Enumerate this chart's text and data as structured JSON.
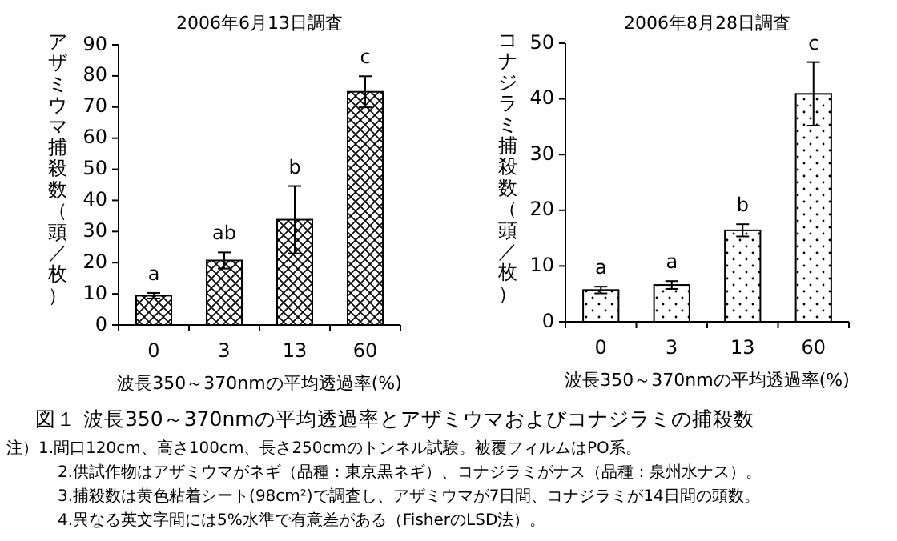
{
  "chart_data": [
    {
      "type": "bar",
      "title": "2006年6月13日調査",
      "xlabel": "波長350～370nmの平均透過率(%)",
      "ylabel": "アザミウマ捕殺数（頭／枚）",
      "categories": [
        "0",
        "3",
        "13",
        "60"
      ],
      "values": [
        9.4,
        20.7,
        33.8,
        74.9
      ],
      "errors": [
        0.9,
        2.6,
        10.8,
        5
      ],
      "color": "#000000",
      "ylim": [
        0,
        90
      ],
      "yticks": [
        0,
        10,
        20,
        30,
        40,
        50,
        60,
        70,
        80,
        90
      ],
      "grid": false,
      "annotations": [
        "a",
        "ab",
        "b",
        "c",
        "図１ 波長350～370nmの平均透過率とアザミウマおよびコナジラミの捕殺数",
        "注）1.間口120cm、高さ100cm、長さ250cmのトンネル試験。被覆フィルムはPO系。",
        "2.供試作物はアザミウマがネギ（品種：東京黒ネギ）、コナジラミがナス（品種：泉州水ナス）。",
        "3.捕殺数は黄色粘着シート(98cm²)で調査し、アザミウマが7日間、コナジラミが14日間の頭数。",
        "4.異なる英文字間には5%水準で有意差がある（FisherのLSD法）。"
      ]
    },
    {
      "type": "bar",
      "title": "2006年8月28日調査",
      "xlabel": "波長350～370nmの平均透過率(%)",
      "ylabel": "コナジラミ捕殺数（頭／枚）",
      "categories": [
        "0",
        "3",
        "13",
        "60"
      ],
      "values": [
        5.7,
        6.6,
        16.4,
        40.9
      ],
      "errors": [
        0.6,
        0.7,
        1.1,
        5.7
      ],
      "color": "#000000",
      "ylim": [
        0,
        50
      ],
      "yticks": [
        0,
        10,
        20,
        30,
        40,
        50
      ],
      "grid": false,
      "annotations": [
        "a",
        "a",
        "b",
        "c"
      ]
    }
  ]
}
